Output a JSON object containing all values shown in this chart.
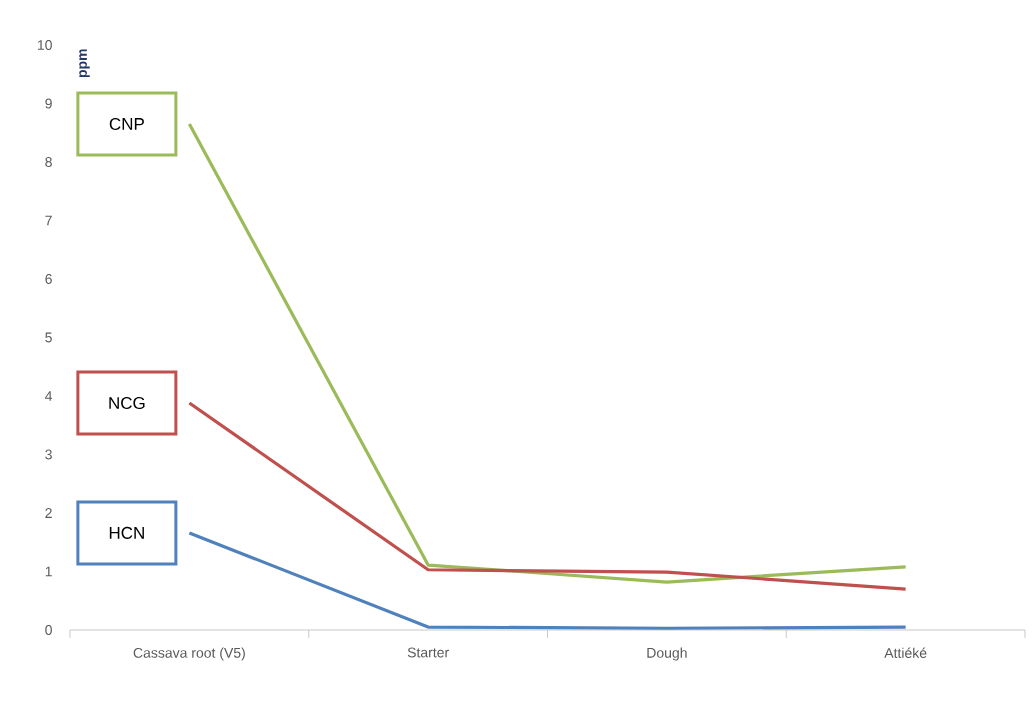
{
  "chart_data": {
    "type": "line",
    "ylabel": "ppm",
    "categories": [
      "Cassava root (V5)",
      "Starter",
      "Dough",
      "Attiéké"
    ],
    "series": [
      {
        "name": "CNP",
        "color": "#9bbb59",
        "values": [
          8.65,
          1.11,
          0.82,
          1.08
        ]
      },
      {
        "name": "NCG",
        "color": "#c0504d",
        "values": [
          3.88,
          1.03,
          0.99,
          0.7
        ]
      },
      {
        "name": "HCN",
        "color": "#4f81bd",
        "values": [
          1.66,
          0.05,
          0.03,
          0.05
        ]
      }
    ],
    "ylim": [
      0,
      10
    ],
    "yticks": [
      0,
      1,
      2,
      3,
      4,
      5,
      6,
      7,
      8,
      9,
      10
    ],
    "grid": false,
    "marker": "none",
    "line_style": "solid"
  }
}
